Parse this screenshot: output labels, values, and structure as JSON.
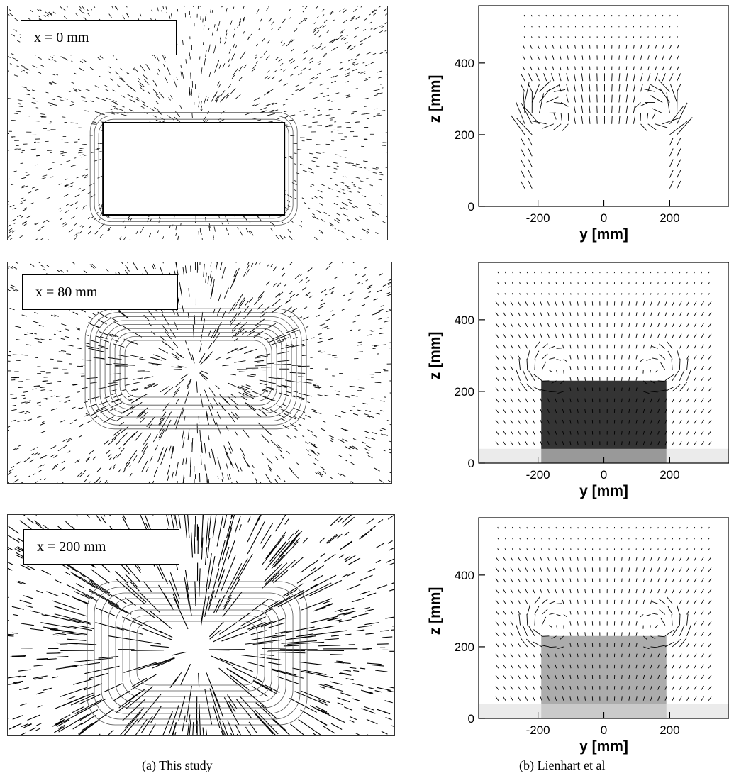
{
  "left_panels": [
    {
      "label": "x = 0 mm"
    },
    {
      "label": "x = 80 mm"
    },
    {
      "label": "x = 200 mm"
    }
  ],
  "captions": {
    "left": "(a)  This study",
    "right": "(b)  Lienhart et al"
  },
  "chart_data": [
    {
      "type": "vector-field",
      "xlabel": "y [mm]",
      "ylabel": "z [mm]",
      "xticks": [
        -200,
        0,
        200
      ],
      "yticks": [
        0,
        200,
        400
      ],
      "xlim": [
        -380,
        380
      ],
      "ylim": [
        0,
        560
      ]
    },
    {
      "type": "vector-field",
      "xlabel": "y [mm]",
      "ylabel": "z [mm]",
      "xticks": [
        -200,
        0,
        200
      ],
      "yticks": [
        0,
        200,
        400
      ],
      "xlim": [
        -380,
        380
      ],
      "ylim": [
        0,
        560
      ]
    },
    {
      "type": "vector-field",
      "xlabel": "y [mm]",
      "ylabel": "z [mm]",
      "xticks": [
        -200,
        0,
        200
      ],
      "yticks": [
        0,
        200,
        400
      ],
      "xlim": [
        -380,
        380
      ],
      "ylim": [
        0,
        560
      ]
    }
  ]
}
